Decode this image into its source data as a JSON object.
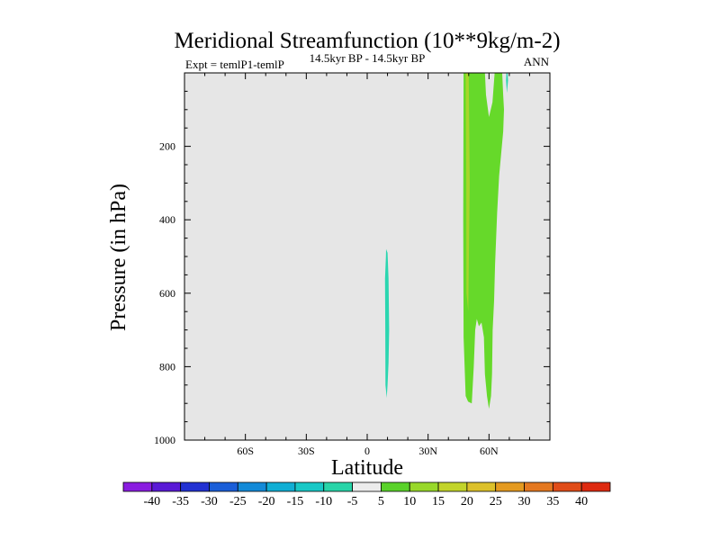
{
  "chart_data": {
    "type": "contour",
    "title": "Meridional Streamfunction (10**9kg/m-2)",
    "subtitle_left": "Expt = temlP1-temlP",
    "subtitle_center": "14.5kyr BP - 14.5kyr BP",
    "subtitle_right": "ANN",
    "xlabel": "Latitude",
    "ylabel": "Pressure (in hPa)",
    "xlim": [
      -90,
      90
    ],
    "ylim": [
      1000,
      0
    ],
    "x_ticks": [
      {
        "value": -60,
        "label": "60S"
      },
      {
        "value": -30,
        "label": "30S"
      },
      {
        "value": 0,
        "label": "0"
      },
      {
        "value": 30,
        "label": "30N"
      },
      {
        "value": 60,
        "label": "60N"
      }
    ],
    "y_ticks": [
      {
        "value": 200,
        "label": "200"
      },
      {
        "value": 400,
        "label": "400"
      },
      {
        "value": 600,
        "label": "600"
      },
      {
        "value": 800,
        "label": "800"
      },
      {
        "value": 1000,
        "label": "1000"
      }
    ],
    "background_color": "#e6e6e6",
    "regions": [
      {
        "name": "cyan-lobe-equator",
        "value_range": [
          -10,
          -5
        ],
        "color": "#2ad6b0",
        "lat": [
          9.3,
          10,
          10.5,
          10.8,
          10.5,
          10,
          9.6,
          9,
          8.9,
          8.8,
          9.2
        ],
        "p": [
          480,
          490,
          560,
          700,
          790,
          850,
          885,
          850,
          700,
          560,
          500
        ]
      },
      {
        "name": "cyan-lobe-north",
        "value_range": [
          -10,
          -5
        ],
        "color": "#2ad6b0",
        "lat": [
          68.6,
          69.1,
          69.4,
          68.8,
          68.4
        ],
        "p": [
          0,
          0,
          20,
          55,
          20
        ]
      },
      {
        "name": "green-region-north",
        "value_range": [
          5,
          10
        ],
        "color": "#66d92a",
        "lat": [
          47.5,
          53,
          56.5,
          58,
          58.5,
          60,
          61.7,
          62.8,
          63.8,
          65.5,
          66.5,
          67,
          67.4,
          67,
          65,
          64,
          63,
          62.5,
          61.8,
          61.5,
          61,
          60,
          59,
          58,
          57.5,
          56.3,
          55,
          54,
          53.2,
          52.5,
          51.5,
          49.7,
          48.5,
          47.5,
          47.3
        ],
        "p": [
          0,
          0,
          0,
          0,
          60,
          120,
          80,
          0,
          0,
          0,
          0,
          60,
          100,
          160,
          280,
          380,
          520,
          620,
          700,
          820,
          880,
          915,
          880,
          820,
          720,
          680,
          690,
          670,
          700,
          800,
          900,
          895,
          880,
          720,
          400
        ]
      },
      {
        "name": "yellowgreen-band",
        "value_range": [
          10,
          15
        ],
        "color": "#a8d62a",
        "lat": [
          48.5,
          50,
          50.5,
          49.8,
          48.9,
          48.8
        ],
        "p": [
          0,
          0,
          300,
          650,
          600,
          300
        ]
      }
    ],
    "colorbar": {
      "levels": [
        -40,
        -35,
        -30,
        -25,
        -20,
        -15,
        -10,
        -5,
        5,
        10,
        15,
        20,
        25,
        30,
        35,
        40
      ],
      "colors": [
        "#8a1de0",
        "#5a1ad6",
        "#2231d2",
        "#1a5ed8",
        "#138ad8",
        "#10aed4",
        "#18c8c6",
        "#28d4a8",
        "#ececec",
        "#5ad22a",
        "#98d82a",
        "#c2d42a",
        "#dcc02a",
        "#e49a20",
        "#e47820",
        "#e04c18",
        "#de2a10"
      ]
    }
  }
}
